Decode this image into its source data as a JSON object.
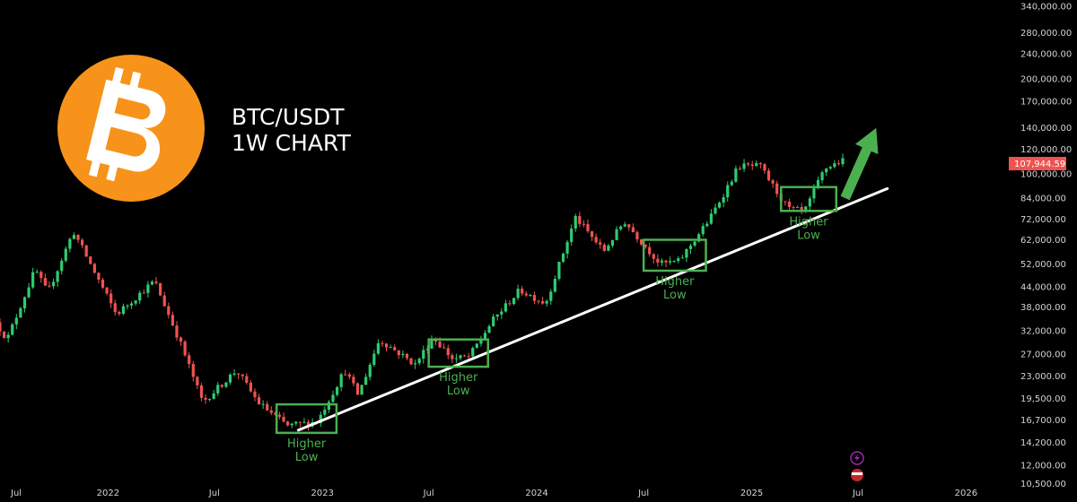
{
  "header": {
    "title_line1": "BTC/USDT",
    "title_line2": "1W CHART"
  },
  "colors": {
    "background": "#000000",
    "bullish": "#26a69a",
    "bullish_bright": "#2ecc71",
    "bearish": "#ef5350",
    "trendline": "#ffffff",
    "annotation": "#4caf50",
    "logo": "#f7931a",
    "price_tag": "#ef5350"
  },
  "icons": {
    "logo": "bitcoin-logo-icon",
    "arrow": "up-arrow-icon"
  },
  "chart_data": {
    "type": "candlestick",
    "title": "BTC/USDT 1W CHART",
    "y_scale": "log",
    "ylim": [
      10000,
      360000
    ],
    "xlim": [
      "2021-07-01",
      "2026-03-01"
    ],
    "y_tick_labels": [
      "340,000.00",
      "280,000.00",
      "240,000.00",
      "200,000.00",
      "170,000.00",
      "140,000.00",
      "120,000.00",
      "100,000.00",
      "84,000.00",
      "72,000.00",
      "62,000.00",
      "52,000.00",
      "44,000.00",
      "38,000.00",
      "32,000.00",
      "27,000.00",
      "23,000.00",
      "19,500.00",
      "16,700.00",
      "14,200.00",
      "12,000.00",
      "10,500.00"
    ],
    "x_tick_labels": [
      "Jul",
      "2022",
      "Jul",
      "2023",
      "Jul",
      "2024",
      "Jul",
      "2025",
      "Jul",
      "2026"
    ],
    "last_price": "107,944.59",
    "key_points": [
      {
        "date": "2021-07-01",
        "price": 34000
      },
      {
        "date": "2021-07-20",
        "price": 30000
      },
      {
        "date": "2021-09-06",
        "price": 50000
      },
      {
        "date": "2021-09-27",
        "price": 42000
      },
      {
        "date": "2021-11-10",
        "price": 66000
      },
      {
        "date": "2022-01-22",
        "price": 36000
      },
      {
        "date": "2022-03-28",
        "price": 46000
      },
      {
        "date": "2022-05-12",
        "price": 29000
      },
      {
        "date": "2022-06-18",
        "price": 19000
      },
      {
        "date": "2022-08-15",
        "price": 24000
      },
      {
        "date": "2022-09-20",
        "price": 19000
      },
      {
        "date": "2022-11-09",
        "price": 16000
      },
      {
        "date": "2022-12-30",
        "price": 16500
      },
      {
        "date": "2023-02-15",
        "price": 24000
      },
      {
        "date": "2023-03-10",
        "price": 20000
      },
      {
        "date": "2023-04-15",
        "price": 30000
      },
      {
        "date": "2023-06-15",
        "price": 25000
      },
      {
        "date": "2023-07-15",
        "price": 30500
      },
      {
        "date": "2023-08-18",
        "price": 26000
      },
      {
        "date": "2023-09-15",
        "price": 26500
      },
      {
        "date": "2023-10-25",
        "price": 34500
      },
      {
        "date": "2023-12-10",
        "price": 43000
      },
      {
        "date": "2024-01-23",
        "price": 39000
      },
      {
        "date": "2024-03-14",
        "price": 73000
      },
      {
        "date": "2024-05-01",
        "price": 57000
      },
      {
        "date": "2024-06-05",
        "price": 71000
      },
      {
        "date": "2024-08-05",
        "price": 52000
      },
      {
        "date": "2024-09-06",
        "price": 53000
      },
      {
        "date": "2024-10-28",
        "price": 72000
      },
      {
        "date": "2024-12-17",
        "price": 106000
      },
      {
        "date": "2025-01-22",
        "price": 106000
      },
      {
        "date": "2025-03-10",
        "price": 78000
      },
      {
        "date": "2025-04-08",
        "price": 76000
      },
      {
        "date": "2025-05-12",
        "price": 104000
      },
      {
        "date": "2025-06-09",
        "price": 110000
      }
    ],
    "trendline": {
      "start": {
        "date": "2022-11-21",
        "price": 15500
      },
      "end": {
        "date": "2025-08-20",
        "price": 90000
      }
    },
    "arrow": {
      "start": {
        "date": "2025-06-09",
        "price": 84000
      },
      "end": {
        "date": "2025-08-01",
        "price": 140000
      }
    },
    "annotations": [
      {
        "text_line1": "Higher",
        "text_line2": "Low",
        "box": {
          "from": "2022-10-15",
          "to": "2023-01-25",
          "low": 15200,
          "high": 18700
        }
      },
      {
        "text_line1": "Higher",
        "text_line2": "Low",
        "box": {
          "from": "2023-07-01",
          "to": "2023-10-10",
          "low": 24600,
          "high": 30000
        }
      },
      {
        "text_line1": "Higher",
        "text_line2": "Low",
        "box": {
          "from": "2024-07-01",
          "to": "2024-10-15",
          "low": 49500,
          "high": 62000
        }
      },
      {
        "text_line1": "Higher",
        "text_line2": "Low",
        "box": {
          "from": "2025-02-20",
          "to": "2025-05-25",
          "low": 76500,
          "high": 91000
        }
      }
    ]
  }
}
